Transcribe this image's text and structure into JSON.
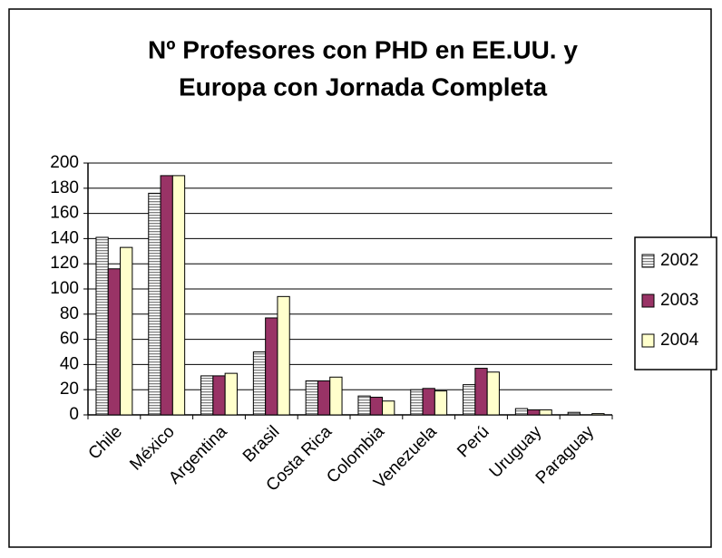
{
  "chart_data": {
    "type": "bar",
    "title": [
      "Nº Profesores con PHD en EE.UU. y",
      "Europa con Jornada Completa"
    ],
    "categories": [
      "Chile",
      "México",
      "Argentina",
      "Brasil",
      "Costa Rica",
      "Colombia",
      "Venezuela",
      "Perú",
      "Uruguay",
      "Paraguay"
    ],
    "series": [
      {
        "name": "2002",
        "color": "#808080",
        "values": [
          141,
          176,
          31,
          50,
          27,
          15,
          20,
          24,
          5,
          2
        ]
      },
      {
        "name": "2003",
        "color": "#993366",
        "values": [
          116,
          190,
          31,
          77,
          27,
          14,
          21,
          37,
          4,
          0
        ]
      },
      {
        "name": "2004",
        "color": "#ffffcc",
        "values": [
          133,
          190,
          33,
          94,
          30,
          11,
          19,
          34,
          4,
          1
        ]
      }
    ],
    "ylim": [
      0,
      200
    ],
    "yticks": [
      0,
      20,
      40,
      60,
      80,
      100,
      120,
      140,
      160,
      180,
      200
    ],
    "grid": true,
    "legend": "right"
  }
}
